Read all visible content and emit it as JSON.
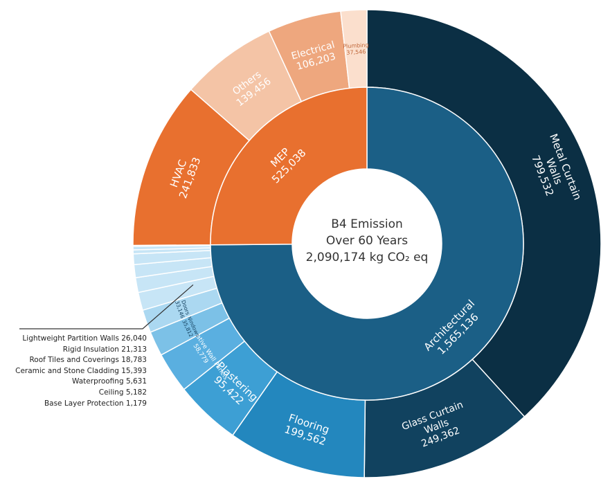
{
  "chart_data": {
    "type": "sunburst",
    "unit": "kg CO₂ eq",
    "center": {
      "line1": "B4 Emission",
      "line2": "Over 60 Years",
      "line3": "2,090,174 kg CO₂ eq"
    },
    "total": 2090174,
    "groups": [
      {
        "name": "Architectural",
        "value_label": "1,565,136",
        "value": 1565136,
        "color": "#1b5f86",
        "children": [
          {
            "name": "Metal Curtain Walls",
            "value_label": "799,532",
            "value": 799532,
            "color": "#0b2f44"
          },
          {
            "name": "Glass Curtain Walls",
            "value_label": "249,362",
            "value": 249362,
            "color": "#11425f"
          },
          {
            "name": "Flooring",
            "value_label": "199,562",
            "value": 199562,
            "color": "#2387be"
          },
          {
            "name": "Plastering",
            "value_label": "95,422",
            "value": 95422,
            "color": "#3d9fd4"
          },
          {
            "name": "Decorative Wall Panels",
            "value_label": "58,779",
            "value": 58779,
            "color": "#5aafe0"
          },
          {
            "name": "Windows",
            "value_label": "35,812",
            "value": 35812,
            "color": "#7cc1e7"
          },
          {
            "name": "Doors",
            "value_label": "33,146",
            "value": 33146,
            "color": "#abd8f1"
          },
          {
            "name": "Lightweight Partition Walls",
            "value_label": "26,040",
            "value": 26040,
            "color": "#c7e5f6"
          },
          {
            "name": "Rigid Insulation",
            "value_label": "21,313",
            "value": 21313,
            "color": "#c7e5f6"
          },
          {
            "name": "Roof Tiles and Coverings",
            "value_label": "18,783",
            "value": 18783,
            "color": "#c7e5f6"
          },
          {
            "name": "Ceramic and Stone Cladding",
            "value_label": "15,393",
            "value": 15393,
            "color": "#c7e5f6"
          },
          {
            "name": "Waterproofing",
            "value_label": "5,631",
            "value": 5631,
            "color": "#c7e5f6"
          },
          {
            "name": "Ceiling",
            "value_label": "5,182",
            "value": 5182,
            "color": "#c7e5f6"
          },
          {
            "name": "Base Layer Protection",
            "value_label": "1,179",
            "value": 1179,
            "color": "#c7e5f6"
          }
        ]
      },
      {
        "name": "MEP",
        "value_label": "525,038",
        "value": 525038,
        "color": "#e8702f",
        "children": [
          {
            "name": "HVAC",
            "value_label": "241,833",
            "value": 241833,
            "color": "#e8702f"
          },
          {
            "name": "Others",
            "value_label": "139,456",
            "value": 139456,
            "color": "#f4c4a6"
          },
          {
            "name": "Electrical",
            "value_label": "106,203",
            "value": 106203,
            "color": "#eea77e"
          },
          {
            "name": "Plumbing",
            "value_label": "37,546",
            "value": 37546,
            "color": "#fbdfcd"
          }
        ]
      }
    ],
    "callout_items": [
      "Lightweight Partition Walls 26,040",
      "Rigid Insulation 21,313",
      "Roof Tiles and Coverings 18,783",
      "Ceramic and Stone Cladding 15,393",
      "Waterproofing 5,631",
      "Ceiling 5,182",
      "Base Layer Protection 1,179"
    ]
  }
}
